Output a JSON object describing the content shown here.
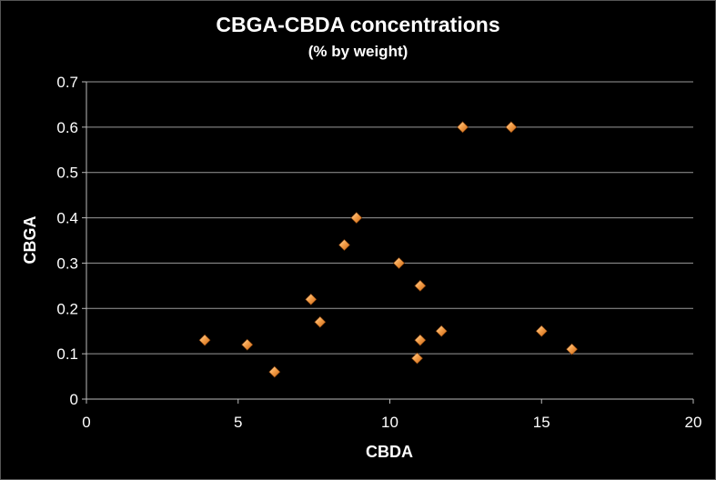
{
  "chart_data": {
    "type": "scatter",
    "title": "CBGA-CBDA concentrations",
    "subtitle": "(% by weight)",
    "xlabel": "CBDA",
    "ylabel": "CBGA",
    "xlim": [
      0,
      20
    ],
    "ylim": [
      0,
      0.7
    ],
    "xticks": [
      "0",
      "5",
      "10",
      "15",
      "20"
    ],
    "yticks": [
      "0",
      "0.1",
      "0.2",
      "0.3",
      "0.4",
      "0.5",
      "0.6",
      "0.7"
    ],
    "grid": "horizontal",
    "legend": "none",
    "marker": "diamond",
    "marker_color": "#f5a04a",
    "points": [
      {
        "x": 3.9,
        "y": 0.13
      },
      {
        "x": 5.3,
        "y": 0.12
      },
      {
        "x": 6.2,
        "y": 0.06
      },
      {
        "x": 7.4,
        "y": 0.22
      },
      {
        "x": 7.7,
        "y": 0.17
      },
      {
        "x": 8.5,
        "y": 0.34
      },
      {
        "x": 8.9,
        "y": 0.4
      },
      {
        "x": 10.3,
        "y": 0.3
      },
      {
        "x": 10.9,
        "y": 0.09
      },
      {
        "x": 11.0,
        "y": 0.25
      },
      {
        "x": 11.0,
        "y": 0.13
      },
      {
        "x": 11.7,
        "y": 0.15
      },
      {
        "x": 12.4,
        "y": 0.6
      },
      {
        "x": 14.0,
        "y": 0.6
      },
      {
        "x": 15.0,
        "y": 0.15
      },
      {
        "x": 16.0,
        "y": 0.11
      }
    ]
  }
}
